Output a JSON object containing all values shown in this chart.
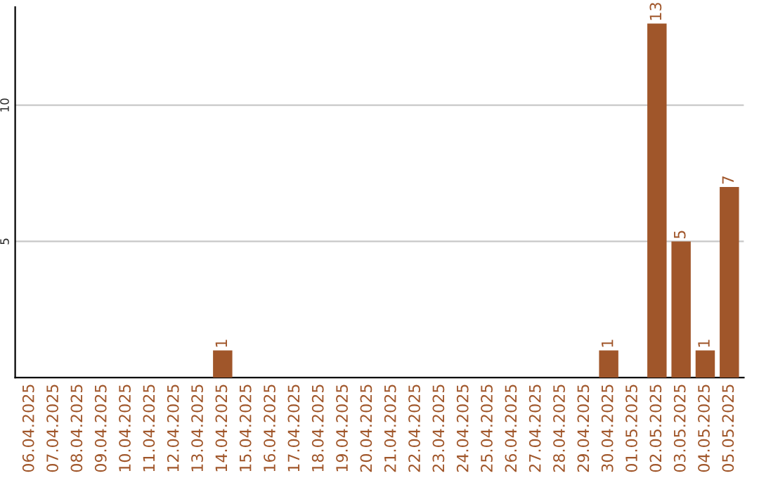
{
  "chart_data": {
    "type": "bar",
    "categories": [
      "06.04.2025",
      "07.04.2025",
      "08.04.2025",
      "09.04.2025",
      "10.04.2025",
      "11.04.2025",
      "12.04.2025",
      "13.04.2025",
      "14.04.2025",
      "15.04.2025",
      "16.04.2025",
      "17.04.2025",
      "18.04.2025",
      "19.04.2025",
      "20.04.2025",
      "21.04.2025",
      "22.04.2025",
      "23.04.2025",
      "24.04.2025",
      "25.04.2025",
      "26.04.2025",
      "27.04.2025",
      "28.04.2025",
      "29.04.2025",
      "30.04.2025",
      "01.05.2025",
      "02.05.2025",
      "03.05.2025",
      "04.05.2025",
      "05.05.2025"
    ],
    "values": [
      null,
      null,
      null,
      null,
      null,
      null,
      null,
      null,
      1,
      null,
      null,
      null,
      null,
      null,
      null,
      null,
      null,
      null,
      null,
      null,
      null,
      null,
      null,
      null,
      1,
      null,
      13,
      5,
      1,
      7
    ],
    "value_labels": [
      null,
      null,
      null,
      null,
      null,
      null,
      null,
      null,
      "1",
      null,
      null,
      null,
      null,
      null,
      null,
      null,
      null,
      null,
      null,
      null,
      null,
      null,
      null,
      null,
      "1",
      null,
      "13",
      "5",
      "1",
      "7"
    ],
    "color": "#a0562a",
    "ylim": [
      0,
      13.6
    ],
    "yticks": [
      5,
      10
    ],
    "grid": "y",
    "legend": false
  }
}
